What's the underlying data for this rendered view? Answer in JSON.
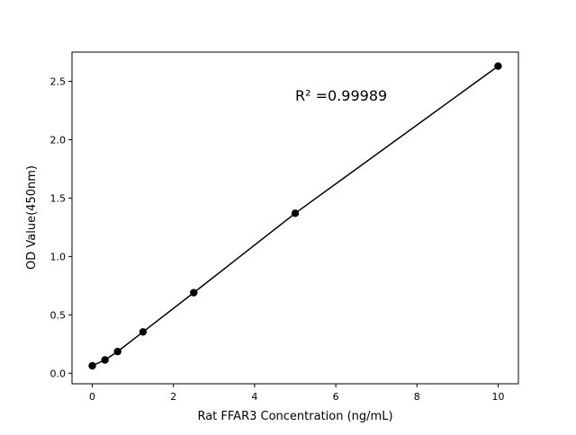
{
  "chart_data": {
    "type": "scatter",
    "title": "",
    "xlabel": "Rat FFAR3 Concentration (ng/mL)",
    "ylabel": "OD Value(450nm)",
    "xlim": [
      -0.5,
      10.5
    ],
    "ylim": [
      -0.09,
      2.75
    ],
    "xticks": [
      0,
      2,
      4,
      6,
      8,
      10
    ],
    "xtick_labels": [
      "0",
      "2",
      "4",
      "6",
      "8",
      "10"
    ],
    "yticks": [
      0.0,
      0.5,
      1.0,
      1.5,
      2.0,
      2.5
    ],
    "ytick_labels": [
      "0.0",
      "0.5",
      "1.0",
      "1.5",
      "2.0",
      "2.5"
    ],
    "grid": false,
    "annotation": "R² =0.99989",
    "annotation_at": [
      5,
      2.38
    ],
    "series": [
      {
        "x": [
          0,
          0.3125,
          0.625,
          1.25,
          2.5,
          5,
          10
        ],
        "y": [
          0.064,
          0.114,
          0.186,
          0.354,
          0.69,
          1.37,
          2.63
        ],
        "color": "#000000",
        "marker": "circle",
        "line": true
      }
    ]
  }
}
